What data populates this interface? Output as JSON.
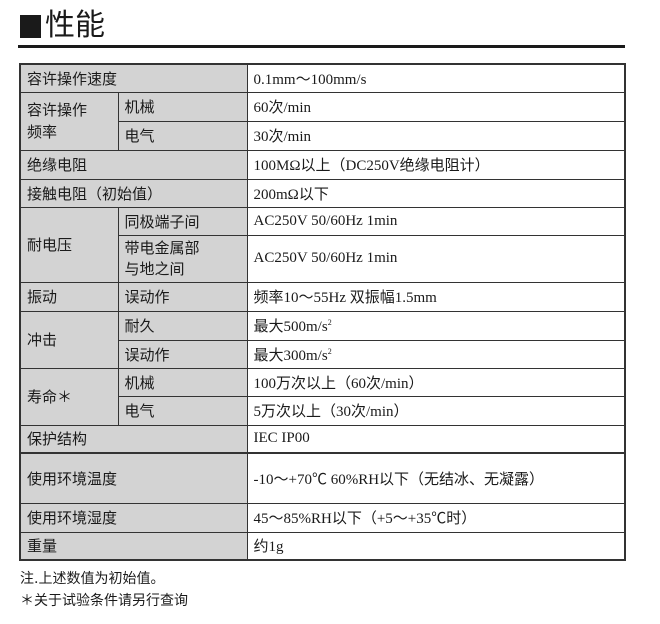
{
  "title": "性能",
  "rows": {
    "speed": {
      "label": "容许操作速度",
      "value": "0.1mm～100mm/s"
    },
    "freq": {
      "label": "容许操作\n频率",
      "mech": "机械",
      "mech_value": "60次/min",
      "elec": "电气",
      "elec_value": "30次/min"
    },
    "insulation": {
      "label": "绝缘电阻",
      "value": "100MΩ以上（DC250V绝缘电阻计）"
    },
    "contact": {
      "label": "接触电阻（初始值）",
      "value": "200mΩ以下"
    },
    "voltage": {
      "label": "耐电压",
      "same": "同极端子间",
      "same_value": "AC250V 50/60Hz 1min",
      "live": "带电金属部\n与地之间",
      "live_value": "AC250V 50/60Hz 1min"
    },
    "vibration": {
      "label": "振动",
      "sub": "误动作",
      "value": "频率10～55Hz 双振幅1.5mm"
    },
    "shock": {
      "label": "冲击",
      "durable": "耐久",
      "durable_value": "最大500m/s",
      "malfunction": "误动作",
      "malfunction_value": "最大300m/s",
      "unit_sup": "2"
    },
    "life": {
      "label": "寿命＊",
      "mech": "机械",
      "mech_value": "100万次以上（60次/min）",
      "elec": "电气",
      "elec_value": "5万次以上（30次/min）"
    },
    "protection": {
      "label": "保护结构",
      "value": "IEC IP00"
    },
    "temperature": {
      "label": "使用环境温度",
      "value": "-10～+70℃  60%RH以下（无结冰、无凝露）"
    },
    "humidity": {
      "label": "使用环境湿度",
      "value": "45～85%RH以下（+5～+35℃时）"
    },
    "weight": {
      "label": "重量",
      "value": "约1g"
    }
  },
  "notes": [
    "注.上述数值为初始值。",
    "＊关于试验条件请另行查询"
  ]
}
